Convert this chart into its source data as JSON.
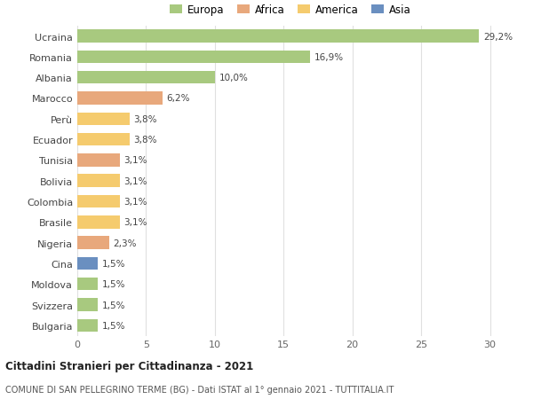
{
  "categories": [
    "Ucraina",
    "Romania",
    "Albania",
    "Marocco",
    "Perù",
    "Ecuador",
    "Tunisia",
    "Bolivia",
    "Colombia",
    "Brasile",
    "Nigeria",
    "Cina",
    "Moldova",
    "Svizzera",
    "Bulgaria"
  ],
  "values": [
    29.2,
    16.9,
    10.0,
    6.2,
    3.8,
    3.8,
    3.1,
    3.1,
    3.1,
    3.1,
    2.3,
    1.5,
    1.5,
    1.5,
    1.5
  ],
  "labels": [
    "29,2%",
    "16,9%",
    "10,0%",
    "6,2%",
    "3,8%",
    "3,8%",
    "3,1%",
    "3,1%",
    "3,1%",
    "3,1%",
    "2,3%",
    "1,5%",
    "1,5%",
    "1,5%",
    "1,5%"
  ],
  "continents": [
    "Europa",
    "Europa",
    "Europa",
    "Africa",
    "America",
    "America",
    "Africa",
    "America",
    "America",
    "America",
    "Africa",
    "Asia",
    "Europa",
    "Europa",
    "Europa"
  ],
  "colors": {
    "Europa": "#a8c97f",
    "Africa": "#e8a87c",
    "America": "#f5cb6e",
    "Asia": "#6a8fc0"
  },
  "legend_order": [
    "Europa",
    "Africa",
    "America",
    "Asia"
  ],
  "xlim": [
    0,
    31
  ],
  "xticks": [
    0,
    5,
    10,
    15,
    20,
    25,
    30
  ],
  "title": "Cittadini Stranieri per Cittadinanza - 2021",
  "subtitle": "COMUNE DI SAN PELLEGRINO TERME (BG) - Dati ISTAT al 1° gennaio 2021 - TUTTITALIA.IT",
  "background_color": "#ffffff",
  "grid_color": "#e0e0e0",
  "bar_height": 0.62
}
